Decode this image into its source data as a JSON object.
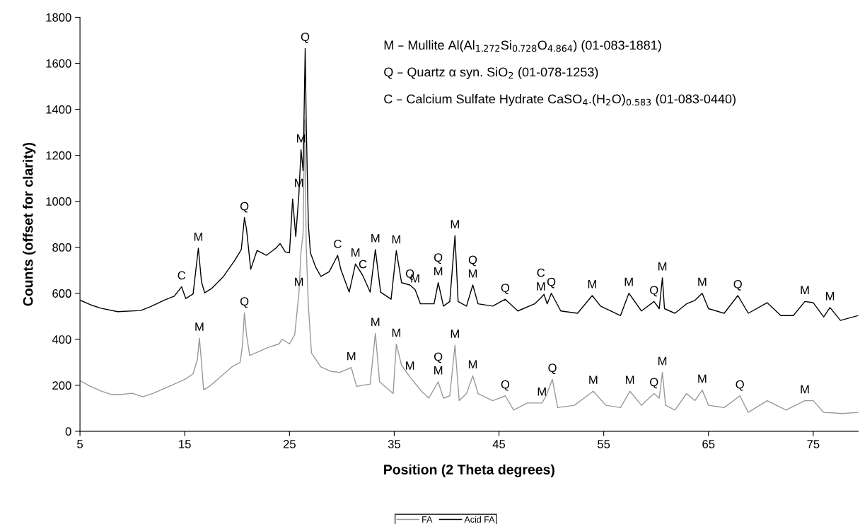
{
  "chart_data": {
    "type": "line",
    "xlabel": "Position (2 Theta degrees)",
    "ylabel": "Counts (offset for clarity)",
    "xlim": [
      5,
      79.3
    ],
    "xticks": [
      5,
      15,
      25,
      35,
      45,
      55,
      65,
      75
    ],
    "ylim": [
      0,
      1800
    ],
    "yticks": [
      0,
      200,
      400,
      600,
      800,
      1000,
      1200,
      1400,
      1600,
      1800
    ],
    "grid": false,
    "legend": "bottom",
    "marker": "none",
    "line_style": "solid",
    "series": [
      {
        "name": "FA",
        "color": "#999999",
        "x": [
          5,
          6,
          7,
          8,
          9,
          10,
          11,
          12,
          13,
          14,
          15,
          15.8,
          16.2,
          16.4,
          16.6,
          16.8,
          17.5,
          18.5,
          19.5,
          20.3,
          20.5,
          20.7,
          20.9,
          21.2,
          22,
          23,
          24,
          24.3,
          25,
          25.5,
          25.9,
          26.1,
          26.3,
          26.45,
          26.6,
          26.8,
          27.1,
          28,
          29,
          29.8,
          30.9,
          31.4,
          32.7,
          33.2,
          33.6,
          34.9,
          35.2,
          35.7,
          36.5,
          37.6,
          38.3,
          39.2,
          39.7,
          40.3,
          40.8,
          41.2,
          41.9,
          42.5,
          43,
          44.4,
          45.6,
          46.4,
          47.7,
          49.1,
          49.5,
          50.1,
          50.6,
          52.2,
          54,
          55.2,
          56.6,
          57.5,
          58.6,
          59.8,
          60.3,
          60.6,
          60.9,
          61.8,
          62.9,
          63.7,
          64.4,
          65,
          66.5,
          68,
          68.8,
          70.6,
          72.4,
          74.2,
          75,
          76,
          77.8,
          79.3
        ],
        "values": [
          220,
          195,
          175,
          160,
          160,
          165,
          150,
          165,
          185,
          205,
          225,
          250,
          310,
          405,
          300,
          180,
          200,
          240,
          280,
          300,
          370,
          515,
          420,
          330,
          345,
          365,
          380,
          400,
          380,
          420,
          600,
          780,
          860,
          1354,
          800,
          550,
          340,
          280,
          260,
          256,
          277,
          195,
          205,
          426,
          215,
          164,
          379,
          287,
          236,
          174,
          144,
          215,
          144,
          154,
          374,
          133,
          164,
          241,
          164,
          133,
          154,
          92,
          123,
          123,
          154,
          226,
          103,
          113,
          174,
          113,
          103,
          174,
          113,
          164,
          144,
          256,
          113,
          92,
          164,
          133,
          179,
          113,
          103,
          154,
          82,
          133,
          92,
          133,
          133,
          82,
          77,
          82
        ]
      },
      {
        "name": "Acid FA",
        "color": "#000000",
        "x": [
          5,
          6,
          7,
          8.6,
          10.8,
          11.7,
          13.1,
          14,
          14.7,
          15.1,
          15.8,
          16.3,
          16.6,
          16.9,
          17.6,
          18.7,
          19.8,
          20.4,
          20.7,
          20.9,
          21.3,
          21.9,
          22.8,
          23.7,
          24.1,
          24.6,
          25,
          25.3,
          25.6,
          25.9,
          26.1,
          26.3,
          26.5,
          26.6,
          26.8,
          27,
          27.5,
          28,
          28.8,
          29.6,
          29.9,
          30.7,
          31.3,
          32,
          32.7,
          33.2,
          33.7,
          34.7,
          35.2,
          35.7,
          36.5,
          37,
          37.5,
          38.8,
          39.2,
          39.7,
          40.3,
          40.8,
          41.1,
          41.9,
          42.5,
          43,
          44.4,
          45.6,
          46.8,
          48.4,
          49.0,
          49.3,
          49.6,
          50,
          50.9,
          52.5,
          53.9,
          54.7,
          56.6,
          57.4,
          58.6,
          59.8,
          60.3,
          60.6,
          60.8,
          61.8,
          62.9,
          63.7,
          64.4,
          65,
          66.5,
          67.8,
          68.8,
          70.6,
          71.9,
          73.1,
          74.2,
          75,
          76,
          76.6,
          77.6,
          79.3
        ],
        "values": [
          570,
          550,
          535,
          520,
          525,
          541,
          571,
          587,
          628,
          577,
          597,
          796,
          650,
          602,
          622,
          673,
          745,
          790,
          929,
          878,
          704,
          786,
          765,
          796,
          816,
          780,
          776,
          1010,
          847,
          1031,
          1224,
          1133,
          1665,
          1340,
          900,
          776,
          714,
          673,
          694,
          765,
          704,
          605,
          728,
          677,
          605,
          790,
          605,
          574,
          785,
          646,
          636,
          615,
          554,
          554,
          646,
          544,
          564,
          851,
          564,
          544,
          636,
          554,
          544,
          574,
          523,
          554,
          580,
          595,
          554,
          600,
          523,
          513,
          590,
          544,
          503,
          600,
          523,
          564,
          533,
          667,
          533,
          513,
          554,
          569,
          600,
          533,
          513,
          590,
          513,
          559,
          503,
          503,
          564,
          559,
          497,
          538,
          482,
          503
        ]
      }
    ],
    "annotations": [
      "M – Mullite Al(Al$_{1.272}$Si$_{0.728}$O$_{4.864}$) (01-083-1881)",
      "Q – Quartz α syn. SiO$_{2}$ (01-078-1253)",
      "C – Calcium Sulfate Hydrate CaSO$_{4}$.(H$_{2}$O)$_{0.583}$ (01-083-0440)",
      {
        "text": "C",
        "x": 14.7,
        "y": 628
      },
      {
        "text": "M",
        "x": 16.3,
        "y": 796
      },
      {
        "text": "Q",
        "x": 20.7,
        "y": 929
      },
      {
        "text": "M",
        "x": 25.9,
        "y": 1031
      },
      {
        "text": "M",
        "x": 26.1,
        "y": 1224
      },
      {
        "text": "Q",
        "x": 26.5,
        "y": 1665
      },
      {
        "text": "C",
        "x": 29.6,
        "y": 765
      },
      {
        "text": "M",
        "x": 31.3,
        "y": 728
      },
      {
        "text": "C",
        "x": 32,
        "y": 677
      },
      {
        "text": "M",
        "x": 33.2,
        "y": 790
      },
      {
        "text": "M",
        "x": 35.2,
        "y": 785
      },
      {
        "text": "M",
        "x": 37,
        "y": 615
      },
      {
        "text": "Q",
        "x": 36.5,
        "y": 636
      },
      {
        "text": "M",
        "x": 39.2,
        "y": 646
      },
      {
        "text": "Q",
        "x": 39.2,
        "y": 646
      },
      {
        "text": "M",
        "x": 40.8,
        "y": 851
      },
      {
        "text": "M",
        "x": 42.5,
        "y": 636
      },
      {
        "text": "Q",
        "x": 42.5,
        "y": 636
      },
      {
        "text": "Q",
        "x": 45.6,
        "y": 574
      },
      {
        "text": "M",
        "x": 49.0,
        "y": 580
      },
      {
        "text": "C",
        "x": 49.0,
        "y": 580
      },
      {
        "text": "Q",
        "x": 50,
        "y": 600
      },
      {
        "text": "M",
        "x": 53.9,
        "y": 590
      },
      {
        "text": "M",
        "x": 57.4,
        "y": 600
      },
      {
        "text": "Q",
        "x": 59.8,
        "y": 564
      },
      {
        "text": "M",
        "x": 60.6,
        "y": 667
      },
      {
        "text": "M",
        "x": 64.4,
        "y": 600
      },
      {
        "text": "Q",
        "x": 67.8,
        "y": 590
      },
      {
        "text": "M",
        "x": 74.2,
        "y": 564
      },
      {
        "text": "M",
        "x": 76.6,
        "y": 538
      },
      {
        "text": "M",
        "x": 16.4,
        "y": 405
      },
      {
        "text": "Q",
        "x": 20.7,
        "y": 515
      },
      {
        "text": "M",
        "x": 25.9,
        "y": 600
      },
      {
        "text": "M",
        "x": 30.9,
        "y": 277
      },
      {
        "text": "M",
        "x": 33.2,
        "y": 426
      },
      {
        "text": "M",
        "x": 35.2,
        "y": 379
      },
      {
        "text": "M",
        "x": 36.5,
        "y": 236
      },
      {
        "text": "M",
        "x": 39.2,
        "y": 215
      },
      {
        "text": "Q",
        "x": 39.2,
        "y": 215
      },
      {
        "text": "M",
        "x": 40.8,
        "y": 374
      },
      {
        "text": "M",
        "x": 42.5,
        "y": 241
      },
      {
        "text": "Q",
        "x": 45.6,
        "y": 154
      },
      {
        "text": "M",
        "x": 49.1,
        "y": 123
      },
      {
        "text": "Q",
        "x": 50.1,
        "y": 226
      },
      {
        "text": "M",
        "x": 54,
        "y": 174
      },
      {
        "text": "M",
        "x": 57.5,
        "y": 174
      },
      {
        "text": "Q",
        "x": 59.8,
        "y": 164
      },
      {
        "text": "M",
        "x": 60.6,
        "y": 256
      },
      {
        "text": "M",
        "x": 64.4,
        "y": 179
      },
      {
        "text": "Q",
        "x": 68,
        "y": 154
      },
      {
        "text": "M",
        "x": 74.2,
        "y": 133
      }
    ]
  }
}
